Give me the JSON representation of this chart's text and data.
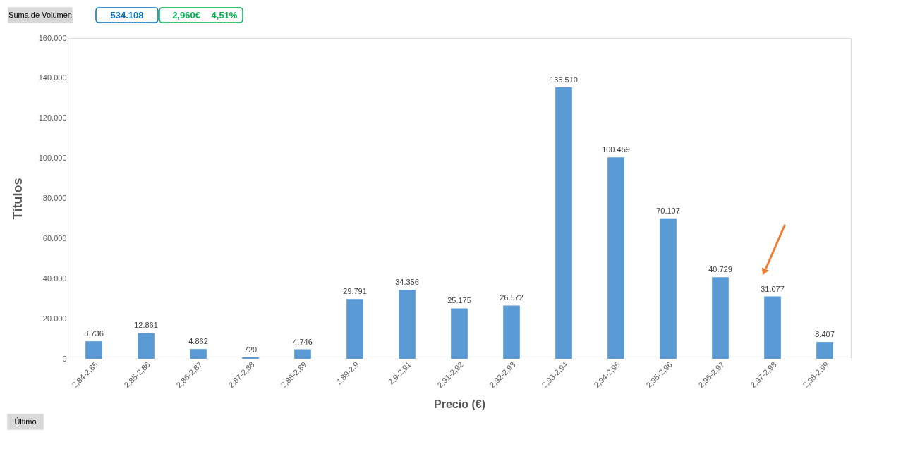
{
  "chart_data": {
    "type": "bar",
    "xlabel": "Precio (€)",
    "ylabel": "Títulos",
    "categories": [
      "2,84-2,85",
      "2,85-2,86",
      "2,86-2,87",
      "2,87-2,88",
      "2,88-2,89",
      "2,89-2,9",
      "2,9-2,91",
      "2,91-2,92",
      "2,92-2,93",
      "2,93-2,94",
      "2,94-2,95",
      "2,95-2,96",
      "2,96-2,97",
      "2,97-2,98",
      "2,98-2,99"
    ],
    "values": [
      8736,
      12861,
      4862,
      720,
      4746,
      29791,
      34356,
      25175,
      26572,
      135510,
      100459,
      70107,
      40729,
      31077,
      8407
    ],
    "value_labels": [
      "8.736",
      "12.861",
      "4.862",
      "720",
      "4.746",
      "29.791",
      "34.356",
      "25.175",
      "26.572",
      "135.510",
      "100.459",
      "70.107",
      "40.729",
      "31.077",
      "8.407"
    ],
    "color": "#5b9bd5",
    "ylim": [
      0,
      160000
    ],
    "yticks": [
      0,
      {
        "value": 20000,
        "label": "20.000"
      },
      {
        "value": 40000,
        "label": "40.000"
      },
      {
        "value": 60000,
        "label": "60.000"
      },
      {
        "value": 80000,
        "label": "80.000"
      },
      {
        "value": 100000,
        "label": "100.000"
      },
      {
        "value": 120000,
        "label": "120.000"
      },
      {
        "value": 140000,
        "label": "140.000"
      },
      {
        "value": 160000,
        "label": "160.000"
      }
    ],
    "grid": false,
    "annotations": [
      "Suma de Volumen",
      "534.108",
      "2,960€",
      "4,51%",
      "Último"
    ]
  }
}
